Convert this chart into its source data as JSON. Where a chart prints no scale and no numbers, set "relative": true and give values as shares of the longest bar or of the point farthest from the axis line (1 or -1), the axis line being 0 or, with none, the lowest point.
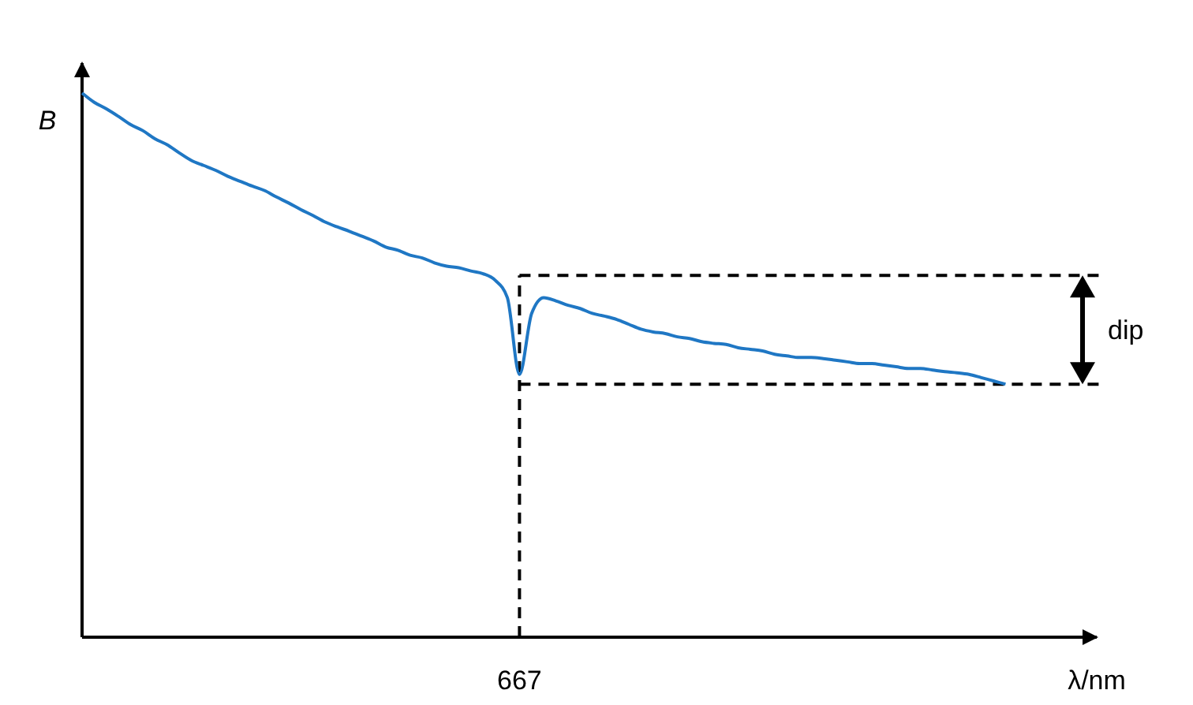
{
  "chart_data": {
    "type": "line",
    "relative": true,
    "ylabel": "B",
    "xlabel": "λ/nm",
    "categories": [
      null,
      null,
      null,
      null,
      null,
      null,
      null,
      null,
      null,
      null,
      null,
      null,
      null,
      null,
      null,
      null,
      null,
      null,
      null,
      null,
      null,
      null,
      null,
      null,
      null,
      null,
      null,
      null,
      null,
      null,
      null,
      null,
      null,
      null,
      null,
      null,
      null,
      null,
      null,
      null,
      null,
      null,
      null,
      null,
      null,
      null,
      null,
      null,
      null,
      null,
      null,
      null,
      null,
      null,
      null,
      null,
      null,
      null,
      null,
      null,
      null,
      null,
      null,
      null,
      null,
      null,
      null,
      null,
      null,
      null,
      null,
      null,
      null,
      null,
      null,
      null,
      null
    ],
    "series": [
      {
        "color": "#1f77c4",
        "values": [
          1,
          0.983,
          0.971,
          0.957,
          0.942,
          0.931,
          0.916,
          0.905,
          0.89,
          0.876,
          0.867,
          0.858,
          0.847,
          0.838,
          0.829,
          0.821,
          0.809,
          0.798,
          0.786,
          0.775,
          0.763,
          0.754,
          0.746,
          0.737,
          0.728,
          0.717,
          0.711,
          0.702,
          0.697,
          0.688,
          0.682,
          0.679,
          0.673,
          0.668,
          0.656,
          0.624,
          0.483,
          0.595,
          0.624,
          0.618,
          0.61,
          0.604,
          0.595,
          0.59,
          0.584,
          0.575,
          0.566,
          0.561,
          0.558,
          0.552,
          0.549,
          0.543,
          0.54,
          0.538,
          0.532,
          0.529,
          0.526,
          0.52,
          0.517,
          0.514,
          0.514,
          0.512,
          0.509,
          0.506,
          0.503,
          0.503,
          0.5,
          0.497,
          0.494,
          0.494,
          0.491,
          0.488,
          0.486,
          0.483,
          0.477,
          0.471,
          0.465
        ]
      }
    ],
    "ref_lines": [
      {
        "axis": "x",
        "value": "667",
        "line_style": "dashed",
        "color": "#000000"
      },
      {
        "axis": "y",
        "value": 0.665,
        "line_style": "dashed",
        "color": "#000000"
      },
      {
        "axis": "y",
        "value": 0.465,
        "line_style": "dashed",
        "color": "#000000"
      }
    ],
    "annotations": [
      "dip"
    ]
  }
}
